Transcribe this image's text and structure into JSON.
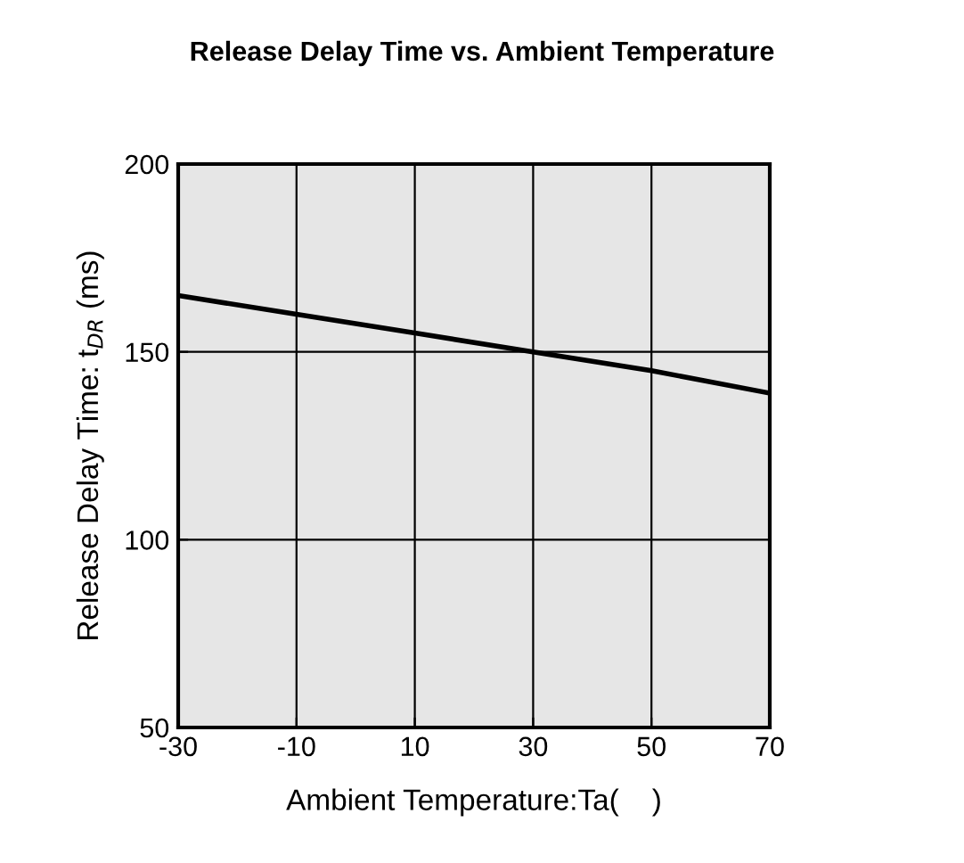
{
  "chart_data": {
    "type": "line",
    "title": "Release Delay Time vs. Ambient Temperature",
    "xlabel": "Ambient Temperature:Ta(    )",
    "ylabel": "Release Delay Time: t$_{DR}$ (ms)",
    "x": [
      -30,
      -10,
      10,
      30,
      50,
      70
    ],
    "series": [
      {
        "color": "#000000",
        "values": [
          165,
          160,
          155,
          150,
          145,
          139
        ]
      }
    ],
    "xlim": [
      -30,
      70
    ],
    "xticks": [
      -30,
      -10,
      10,
      30,
      50,
      70
    ],
    "ylim": [
      50,
      200
    ],
    "yticks": [
      50,
      100,
      150,
      200
    ],
    "grid": true,
    "marker": "none",
    "line_style": "solid"
  }
}
